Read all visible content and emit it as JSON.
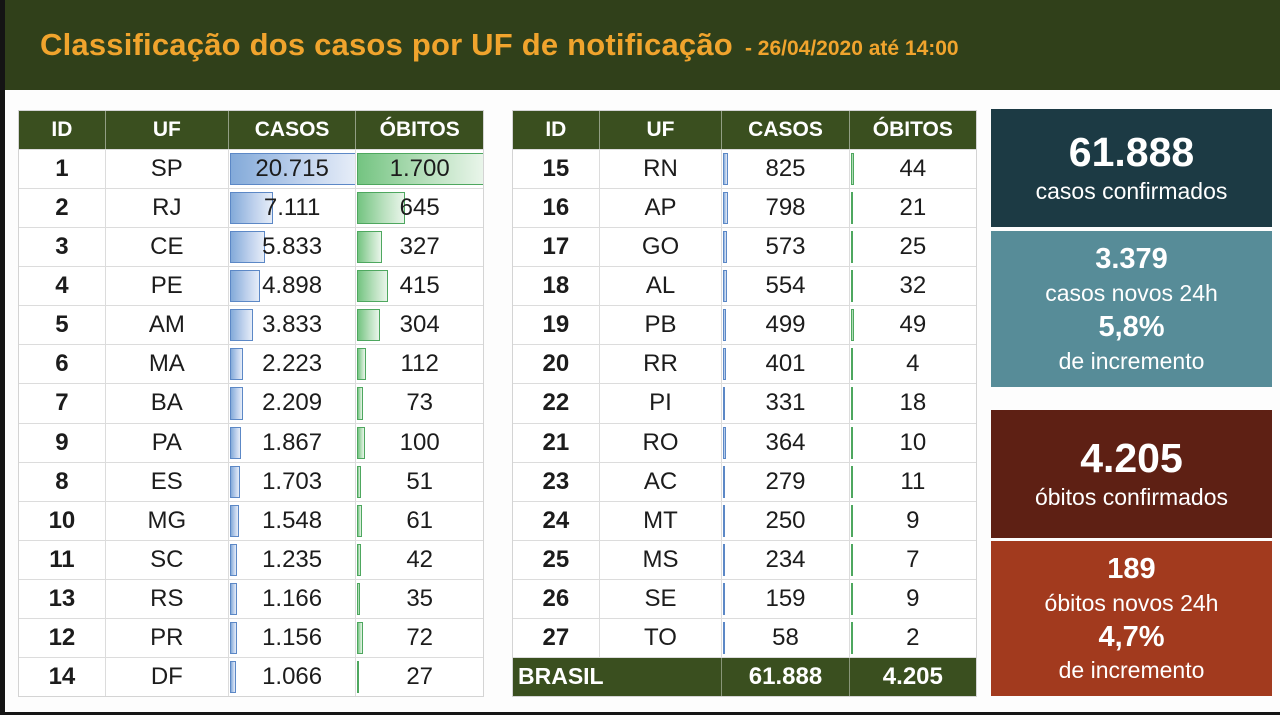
{
  "page": {
    "title": "Classificação dos casos por UF de notificação",
    "title_suffix": "- 26/04/2020 até 14:00"
  },
  "chart_data": {
    "type": "table",
    "title": "Classificação dos casos por UF de notificação",
    "subtitle": "- 26/04/2020 até 14:00",
    "columns": [
      "ID",
      "UF",
      "CASOS",
      "ÓBITOS"
    ],
    "bar_layout": "CASOS has blue gradient databars, ÓBITOS has green gradient databars, lengths proportional to value with shared scale across both tables",
    "tables": [
      {
        "rows": [
          [
            "1",
            "SP",
            "20.715",
            "1.700"
          ],
          [
            "2",
            "RJ",
            "7.111",
            "645"
          ],
          [
            "3",
            "CE",
            "5.833",
            "327"
          ],
          [
            "4",
            "PE",
            "4.898",
            "415"
          ],
          [
            "5",
            "AM",
            "3.833",
            "304"
          ],
          [
            "6",
            "MA",
            "2.223",
            "112"
          ],
          [
            "7",
            "BA",
            "2.209",
            "73"
          ],
          [
            "9",
            "PA",
            "1.867",
            "100"
          ],
          [
            "8",
            "ES",
            "1.703",
            "51"
          ],
          [
            "10",
            "MG",
            "1.548",
            "61"
          ],
          [
            "11",
            "SC",
            "1.235",
            "42"
          ],
          [
            "13",
            "RS",
            "1.166",
            "35"
          ],
          [
            "12",
            "PR",
            "1.156",
            "72"
          ],
          [
            "14",
            "DF",
            "1.066",
            "27"
          ]
        ]
      },
      {
        "rows": [
          [
            "15",
            "RN",
            "825",
            "44"
          ],
          [
            "16",
            "AP",
            "798",
            "21"
          ],
          [
            "17",
            "GO",
            "573",
            "25"
          ],
          [
            "18",
            "AL",
            "554",
            "32"
          ],
          [
            "19",
            "PB",
            "499",
            "49"
          ],
          [
            "20",
            "RR",
            "401",
            "4"
          ],
          [
            "22",
            "PI",
            "331",
            "18"
          ],
          [
            "21",
            "RO",
            "364",
            "10"
          ],
          [
            "23",
            "AC",
            "279",
            "11"
          ],
          [
            "24",
            "MT",
            "250",
            "9"
          ],
          [
            "25",
            "MS",
            "234",
            "7"
          ],
          [
            "26",
            "SE",
            "159",
            "9"
          ],
          [
            "27",
            "TO",
            "58",
            "2"
          ]
        ],
        "footer": {
          "label": "BRASIL",
          "casos": "61.888",
          "obitos": "4.205"
        }
      }
    ]
  },
  "cards": [
    {
      "name": "casos-confirmados",
      "bg": "#1c3a44",
      "lines": [
        {
          "text": "61.888",
          "style": "big-xl"
        },
        {
          "text": "casos confirmados",
          "style": "label"
        }
      ]
    },
    {
      "name": "casos-novos-24h",
      "bg": "#578c98",
      "lines": [
        {
          "text": "3.379",
          "style": "big"
        },
        {
          "text": "casos novos 24h",
          "style": "label"
        },
        {
          "text": "5,8%",
          "style": "big"
        },
        {
          "text": "de incremento",
          "style": "label"
        }
      ]
    },
    {
      "name": "obitos-confirmados",
      "bg": "#5e2014",
      "lines": [
        {
          "text": "4.205",
          "style": "big-xl"
        },
        {
          "text": "óbitos confirmados",
          "style": "label"
        }
      ]
    },
    {
      "name": "obitos-novos-24h",
      "bg": "#a23a1e",
      "lines": [
        {
          "text": "189",
          "style": "big"
        },
        {
          "text": "óbitos novos 24h",
          "style": "label"
        },
        {
          "text": "4,7%",
          "style": "big"
        },
        {
          "text": "de incremento",
          "style": "label"
        }
      ]
    }
  ],
  "colors": {
    "header_bg": "#30401a",
    "table_header_bg": "#3a4f1f",
    "title_color": "#f0a42d",
    "bar_blue_fill": "#83aad9",
    "bar_blue_border": "#5c88c6",
    "bar_green_fill": "#74c481",
    "bar_green_border": "#4ea75f",
    "edge_strip": "#141414"
  }
}
